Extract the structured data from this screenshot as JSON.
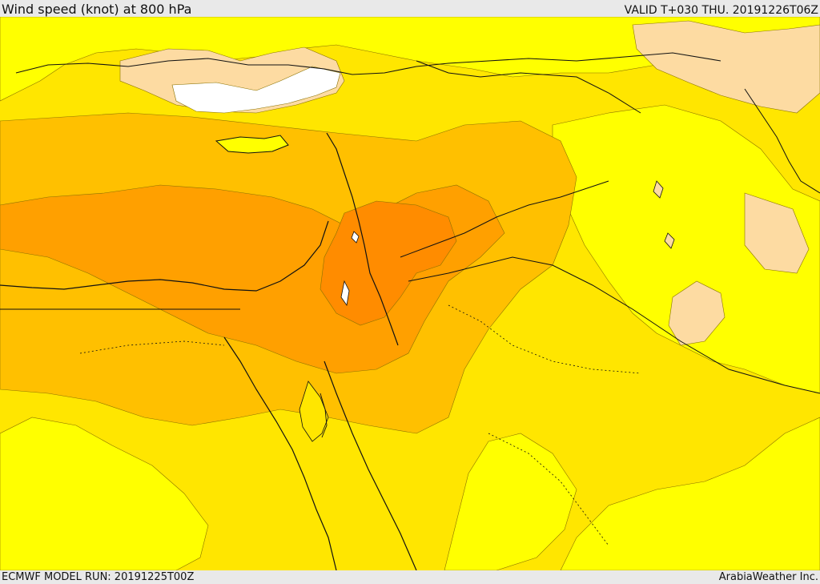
{
  "header": {
    "title": "Wind speed (knot) at 800 hPa",
    "valid": "VALID T+030 THU. 20191226T06Z"
  },
  "footer": {
    "model_run": "ECMWF MODEL RUN: 20191225T00Z",
    "provider": "ArabiaWeather Inc."
  },
  "map": {
    "palette": {
      "white": "#ffffff",
      "peach": "#fddba2",
      "yellow": "#ffff00",
      "gold": "#ffe600",
      "amber": "#ffc000",
      "orange": "#ffa000",
      "dark_orange": "#ff8c00",
      "coast": "#111111",
      "border": "#111111"
    }
  }
}
